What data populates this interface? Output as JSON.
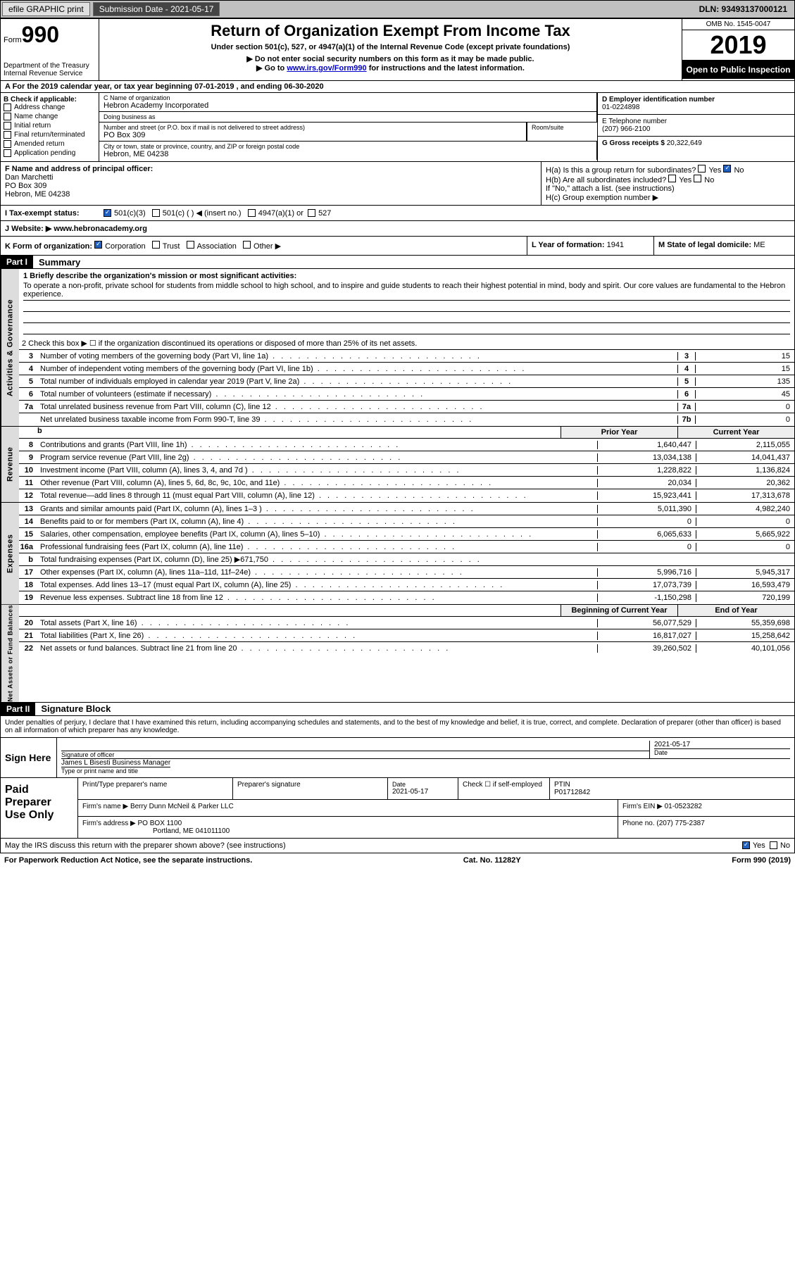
{
  "topbar": {
    "efile": "efile GRAPHIC print",
    "submission": "Submission Date - 2021-05-17",
    "dln": "DLN: 93493137000121"
  },
  "header": {
    "form_label": "Form",
    "form_number": "990",
    "dept": "Department of the Treasury\nInternal Revenue Service",
    "title": "Return of Organization Exempt From Income Tax",
    "subtitle": "Under section 501(c), 527, or 4947(a)(1) of the Internal Revenue Code (except private foundations)",
    "arrow1": "▶ Do not enter social security numbers on this form as it may be made public.",
    "arrow2_pre": "▶ Go to ",
    "arrow2_link": "www.irs.gov/Form990",
    "arrow2_post": " for instructions and the latest information.",
    "omb": "OMB No. 1545-0047",
    "year": "2019",
    "inspect": "Open to Public Inspection"
  },
  "line_a": "A For the 2019 calendar year, or tax year beginning 07-01-2019    , and ending 06-30-2020",
  "b": {
    "label": "B Check if applicable:",
    "items": [
      "Address change",
      "Name change",
      "Initial return",
      "Final return/terminated",
      "Amended return",
      "Application pending"
    ]
  },
  "c": {
    "name_label": "C Name of organization",
    "name": "Hebron Academy Incorporated",
    "dba_label": "Doing business as",
    "dba": "",
    "street_label": "Number and street (or P.O. box if mail is not delivered to street address)",
    "street": "PO Box 309",
    "room_label": "Room/suite",
    "city_label": "City or town, state or province, country, and ZIP or foreign postal code",
    "city": "Hebron, ME  04238"
  },
  "d": {
    "ein_label": "D Employer identification number",
    "ein": "01-0224898",
    "phone_label": "E Telephone number",
    "phone": "(207) 966-2100",
    "gross_label": "G Gross receipts $",
    "gross": "20,322,649"
  },
  "f": {
    "label": "F  Name and address of principal officer:",
    "name": "Dan Marchetti",
    "street": "PO Box 309",
    "city": "Hebron, ME  04238"
  },
  "h": {
    "a_label": "H(a)  Is this a group return for subordinates?",
    "b_label": "H(b)  Are all subordinates included?",
    "b_note": "If \"No,\" attach a list. (see instructions)",
    "c_label": "H(c)  Group exemption number ▶"
  },
  "i": {
    "label": "I   Tax-exempt status:",
    "opts": [
      "501(c)(3)",
      "501(c) (   ) ◀ (insert no.)",
      "4947(a)(1) or",
      "527"
    ]
  },
  "j": {
    "label": "J   Website: ▶",
    "val": "www.hebronacademy.org"
  },
  "k": {
    "label": "K Form of organization:",
    "opts": [
      "Corporation",
      "Trust",
      "Association",
      "Other ▶"
    ],
    "l_label": "L Year of formation:",
    "l_val": "1941",
    "m_label": "M State of legal domicile:",
    "m_val": "ME"
  },
  "part1": {
    "header": "Part I",
    "title": "Summary",
    "line1_label": "1   Briefly describe the organization's mission or most significant activities:",
    "line1_text": "To operate a non-profit, private school for students from middle school to high school, and to inspire and guide students to reach their highest potential in mind, body and spirit. Our core values are fundamental to the Hebron experience.",
    "line2": "2   Check this box ▶ ☐  if the organization discontinued its operations or disposed of more than 25% of its net assets.",
    "rows_ag": [
      {
        "n": "3",
        "d": "Number of voting members of the governing body (Part VI, line 1a)",
        "box": "3",
        "v": "15"
      },
      {
        "n": "4",
        "d": "Number of independent voting members of the governing body (Part VI, line 1b)",
        "box": "4",
        "v": "15"
      },
      {
        "n": "5",
        "d": "Total number of individuals employed in calendar year 2019 (Part V, line 2a)",
        "box": "5",
        "v": "135"
      },
      {
        "n": "6",
        "d": "Total number of volunteers (estimate if necessary)",
        "box": "6",
        "v": "45"
      },
      {
        "n": "7a",
        "d": "Total unrelated business revenue from Part VIII, column (C), line 12",
        "box": "7a",
        "v": "0"
      },
      {
        "n": "",
        "d": "Net unrelated business taxable income from Form 990-T, line 39",
        "box": "7b",
        "v": "0"
      }
    ],
    "prior_hdr": "Prior Year",
    "curr_hdr": "Current Year",
    "rows_rev": [
      {
        "n": "8",
        "d": "Contributions and grants (Part VIII, line 1h)",
        "p": "1,640,447",
        "c": "2,115,055"
      },
      {
        "n": "9",
        "d": "Program service revenue (Part VIII, line 2g)",
        "p": "13,034,138",
        "c": "14,041,437"
      },
      {
        "n": "10",
        "d": "Investment income (Part VIII, column (A), lines 3, 4, and 7d )",
        "p": "1,228,822",
        "c": "1,136,824"
      },
      {
        "n": "11",
        "d": "Other revenue (Part VIII, column (A), lines 5, 6d, 8c, 9c, 10c, and 11e)",
        "p": "20,034",
        "c": "20,362"
      },
      {
        "n": "12",
        "d": "Total revenue—add lines 8 through 11 (must equal Part VIII, column (A), line 12)",
        "p": "15,923,441",
        "c": "17,313,678"
      }
    ],
    "rows_exp": [
      {
        "n": "13",
        "d": "Grants and similar amounts paid (Part IX, column (A), lines 1–3 )",
        "p": "5,011,390",
        "c": "4,982,240"
      },
      {
        "n": "14",
        "d": "Benefits paid to or for members (Part IX, column (A), line 4)",
        "p": "0",
        "c": "0"
      },
      {
        "n": "15",
        "d": "Salaries, other compensation, employee benefits (Part IX, column (A), lines 5–10)",
        "p": "6,065,633",
        "c": "5,665,922"
      },
      {
        "n": "16a",
        "d": "Professional fundraising fees (Part IX, column (A), line 11e)",
        "p": "0",
        "c": "0"
      },
      {
        "n": "b",
        "d": "Total fundraising expenses (Part IX, column (D), line 25) ▶671,750",
        "p": "",
        "c": "",
        "shaded": true
      },
      {
        "n": "17",
        "d": "Other expenses (Part IX, column (A), lines 11a–11d, 11f–24e)",
        "p": "5,996,716",
        "c": "5,945,317"
      },
      {
        "n": "18",
        "d": "Total expenses. Add lines 13–17 (must equal Part IX, column (A), line 25)",
        "p": "17,073,739",
        "c": "16,593,479"
      },
      {
        "n": "19",
        "d": "Revenue less expenses. Subtract line 18 from line 12",
        "p": "-1,150,298",
        "c": "720,199"
      }
    ],
    "boy_hdr": "Beginning of Current Year",
    "eoy_hdr": "End of Year",
    "rows_na": [
      {
        "n": "20",
        "d": "Total assets (Part X, line 16)",
        "p": "56,077,529",
        "c": "55,359,698"
      },
      {
        "n": "21",
        "d": "Total liabilities (Part X, line 26)",
        "p": "16,817,027",
        "c": "15,258,642"
      },
      {
        "n": "22",
        "d": "Net assets or fund balances. Subtract line 21 from line 20",
        "p": "39,260,502",
        "c": "40,101,056"
      }
    ]
  },
  "part2": {
    "header": "Part II",
    "title": "Signature Block",
    "decl": "Under penalties of perjury, I declare that I have examined this return, including accompanying schedules and statements, and to the best of my knowledge and belief, it is true, correct, and complete. Declaration of preparer (other than officer) is based on all information of which preparer has any knowledge.",
    "sign_here": "Sign Here",
    "sig_officer": "Signature of officer",
    "sig_date": "2021-05-17",
    "date_label": "Date",
    "officer_name": "James L Bisesti  Business Manager",
    "officer_label": "Type or print name and title",
    "paid_prep": "Paid Preparer Use Only",
    "prep_name_label": "Print/Type preparer's name",
    "prep_sig_label": "Preparer's signature",
    "prep_date": "2021-05-17",
    "check_se": "Check ☐ if self-employed",
    "ptin_label": "PTIN",
    "ptin": "P01712842",
    "firm_name_label": "Firm's name    ▶",
    "firm_name": "Berry Dunn McNeil & Parker LLC",
    "firm_ein_label": "Firm's EIN ▶",
    "firm_ein": "01-0523282",
    "firm_addr_label": "Firm's address ▶",
    "firm_addr1": "PO BOX 1100",
    "firm_addr2": "Portland, ME  041011100",
    "firm_phone_label": "Phone no.",
    "firm_phone": "(207) 775-2387",
    "discuss": "May the IRS discuss this return with the preparer shown above? (see instructions)",
    "yes": "Yes",
    "no": "No"
  },
  "footer": {
    "left": "For Paperwork Reduction Act Notice, see the separate instructions.",
    "mid": "Cat. No. 11282Y",
    "right": "Form 990 (2019)"
  },
  "vtabs": {
    "ag": "Activities & Governance",
    "rev": "Revenue",
    "exp": "Expenses",
    "na": "Net Assets or Fund Balances"
  }
}
